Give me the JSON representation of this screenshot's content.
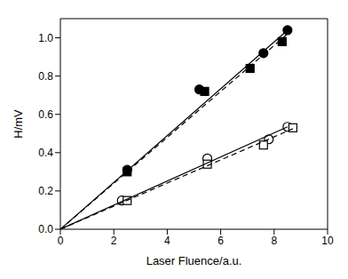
{
  "chart_data": {
    "type": "scatter",
    "x_label": "Laser Fluence/a.u.",
    "y_label": "H/mV",
    "xlim": [
      0,
      10
    ],
    "xticks": [
      0,
      2,
      4,
      6,
      8,
      10
    ],
    "ylim": [
      0,
      1.1
    ],
    "yticks": [
      {
        "value": 0,
        "label": "0.0"
      },
      {
        "value": 0.2,
        "label": "0.2"
      },
      {
        "value": 0.4,
        "label": "0.4"
      },
      {
        "value": 0.6,
        "label": "0.6"
      },
      {
        "value": 0.8,
        "label": "0.8"
      },
      {
        "value": 1.0,
        "label": "1.0"
      }
    ],
    "series": [
      {
        "type": "scatter",
        "marker": "filled_circle",
        "color": "#000000",
        "x": [
          2.5,
          5.2,
          7.6,
          8.5
        ],
        "values": [
          0.31,
          0.73,
          0.92,
          1.04
        ]
      },
      {
        "type": "scatter",
        "marker": "filled_square",
        "color": "#000000",
        "x": [
          2.5,
          5.4,
          7.1,
          8.3
        ],
        "values": [
          0.3,
          0.72,
          0.84,
          0.98
        ]
      },
      {
        "type": "scatter",
        "marker": "open_circle",
        "color": "#000000",
        "x": [
          2.3,
          5.5,
          7.8,
          8.5
        ],
        "values": [
          0.15,
          0.37,
          0.47,
          0.535
        ]
      },
      {
        "type": "scatter",
        "marker": "open_square",
        "color": "#000000",
        "x": [
          2.5,
          5.5,
          7.6,
          8.7
        ],
        "values": [
          0.15,
          0.34,
          0.44,
          0.53
        ]
      },
      {
        "type": "line",
        "line_style": "solid",
        "color": "#000000",
        "x": [
          0,
          8.5
        ],
        "values": [
          0,
          1.04
        ]
      },
      {
        "type": "line",
        "line_style": "dashed",
        "color": "#000000",
        "x": [
          0,
          8.5
        ],
        "values": [
          0,
          1.02
        ]
      },
      {
        "type": "line",
        "line_style": "solid",
        "color": "#000000",
        "x": [
          0,
          8.5
        ],
        "values": [
          0,
          0.535
        ]
      },
      {
        "type": "line",
        "line_style": "dashed",
        "color": "#000000",
        "x": [
          0,
          8.7
        ],
        "values": [
          0,
          0.525
        ]
      }
    ]
  }
}
